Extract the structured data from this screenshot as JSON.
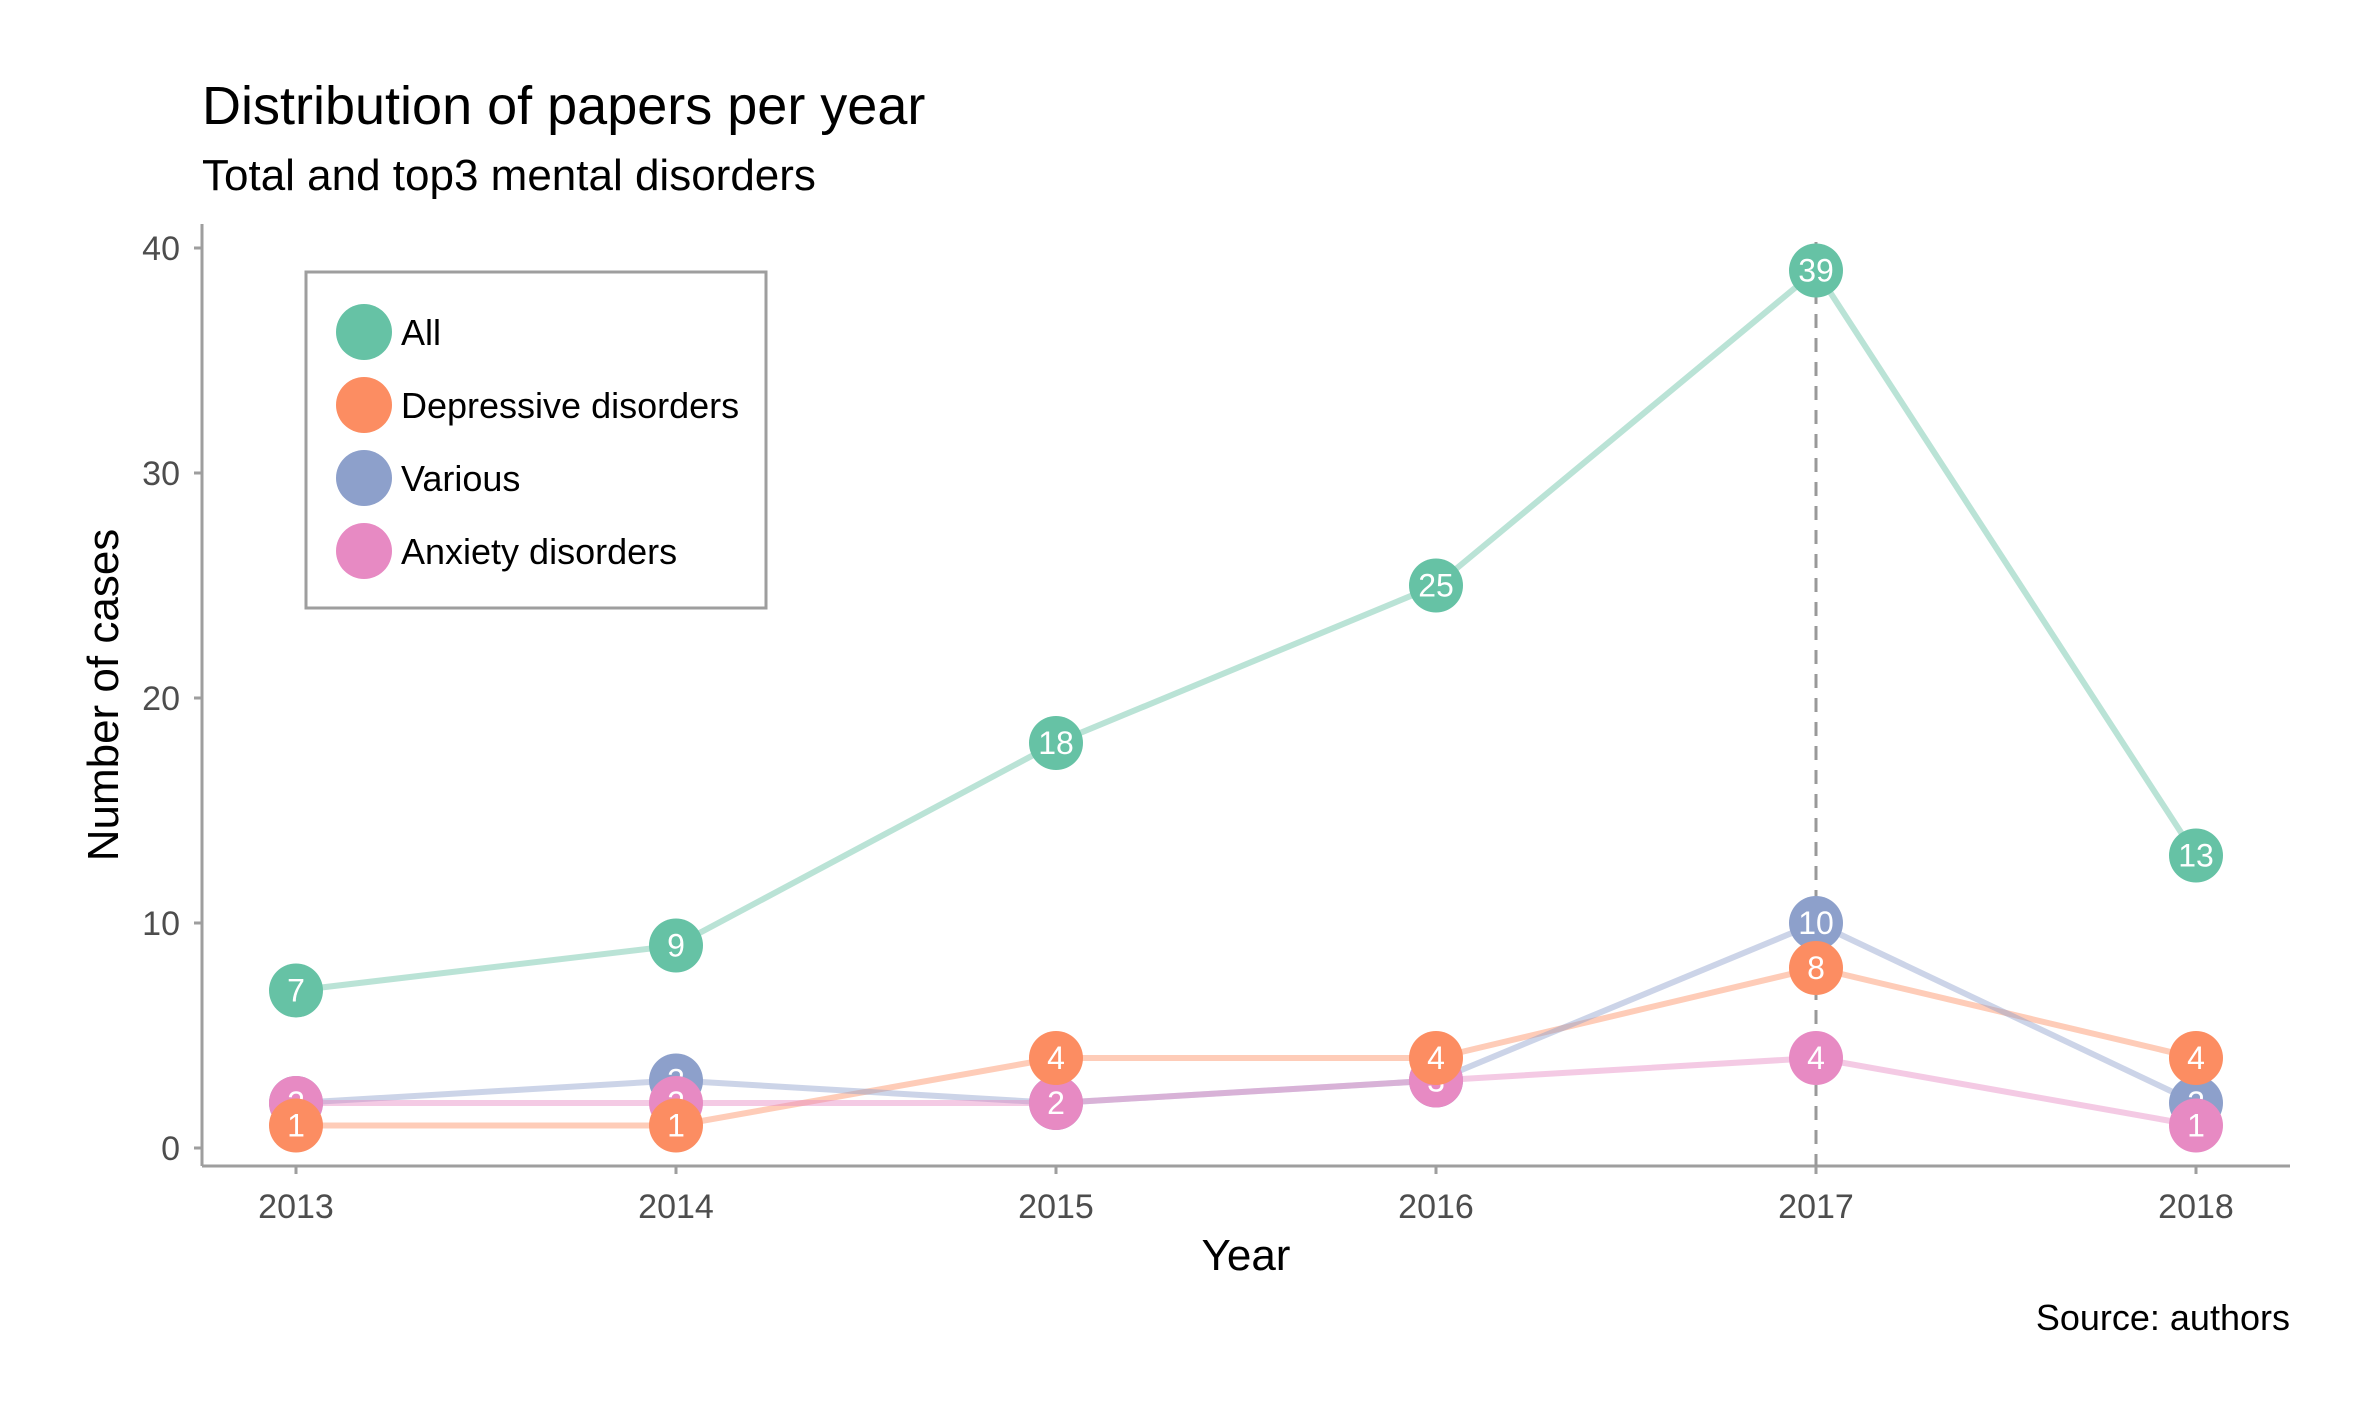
{
  "chart_data": {
    "type": "line",
    "title": "Distribution of papers per year",
    "subtitle": "Total and top3 mental disorders",
    "xlabel": "Year",
    "ylabel": "Number of cases",
    "caption": "Source: authors",
    "categories": [
      "2013",
      "2014",
      "2015",
      "2016",
      "2017",
      "2018"
    ],
    "ylim": [
      0,
      41
    ],
    "yticks": [
      0,
      10,
      20,
      30,
      40
    ],
    "grid": false,
    "legend_position": "top-left",
    "reference_line": {
      "x": "2017",
      "style": "dashed",
      "color": "#999999"
    },
    "series": [
      {
        "name": "All",
        "color": "#66c2a5",
        "values": [
          7,
          9,
          18,
          25,
          39,
          13
        ]
      },
      {
        "name": "Depressive disorders",
        "color": "#fc8d62",
        "values": [
          1,
          1,
          4,
          4,
          8,
          4
        ]
      },
      {
        "name": "Various",
        "color": "#8da0cb",
        "values": [
          2,
          3,
          2,
          3,
          10,
          2
        ]
      },
      {
        "name": "Anxiety disorders",
        "color": "#e78ac3",
        "values": [
          2,
          2,
          2,
          3,
          4,
          1
        ]
      }
    ]
  }
}
